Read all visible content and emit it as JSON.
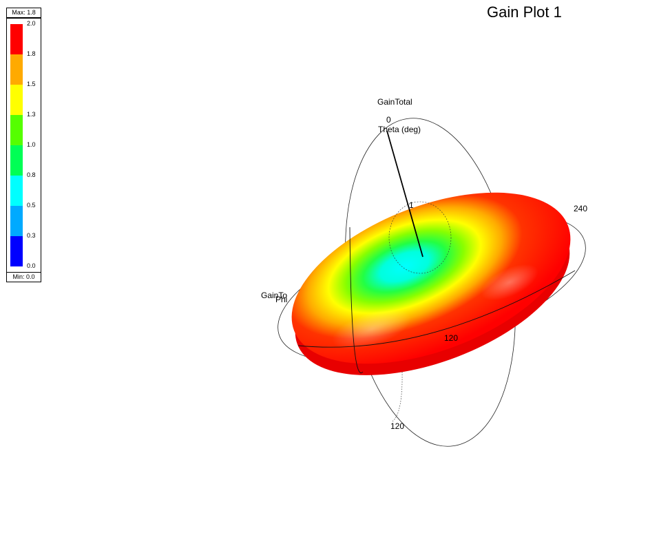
{
  "title": "Gain Plot 1",
  "legend": {
    "max_label": "Max: 1.8",
    "min_label": "Min: 0.0",
    "ticks": [
      "2.0",
      "1.8",
      "1.5",
      "1.3",
      "1.0",
      "0.8",
      "0.5",
      "0.3",
      "0.0"
    ],
    "colors": [
      "#ff0000",
      "#ffaa00",
      "#ffff00",
      "#55ff00",
      "#00ff55",
      "#00ffff",
      "#00aaff",
      "#0000ff"
    ]
  },
  "axes": {
    "quantity_label": "GainTotal",
    "theta_label": "Theta (deg)",
    "theta_zero": "0",
    "phi_label": "240",
    "ring_label_1": "120",
    "ring_label_2": "120",
    "inner_tick": "1",
    "side_label": "GainTo",
    "side_sub": "Phi"
  },
  "chart_data": {
    "type": "3d-radiation-pattern",
    "title": "Gain Plot 1",
    "quantity": "GainTotal",
    "scale": {
      "min": 0.0,
      "max": 1.8,
      "ticks": [
        2.0,
        1.8,
        1.5,
        1.3,
        1.0,
        0.8,
        0.5,
        0.3,
        0.0
      ]
    },
    "pattern": "toroidal (doughnut) gain pattern, minimum near 0 along the axis, maximum around the equator",
    "colormap": [
      "blue",
      "light-blue",
      "cyan",
      "green",
      "yellow-green",
      "yellow",
      "orange",
      "red"
    ]
  }
}
